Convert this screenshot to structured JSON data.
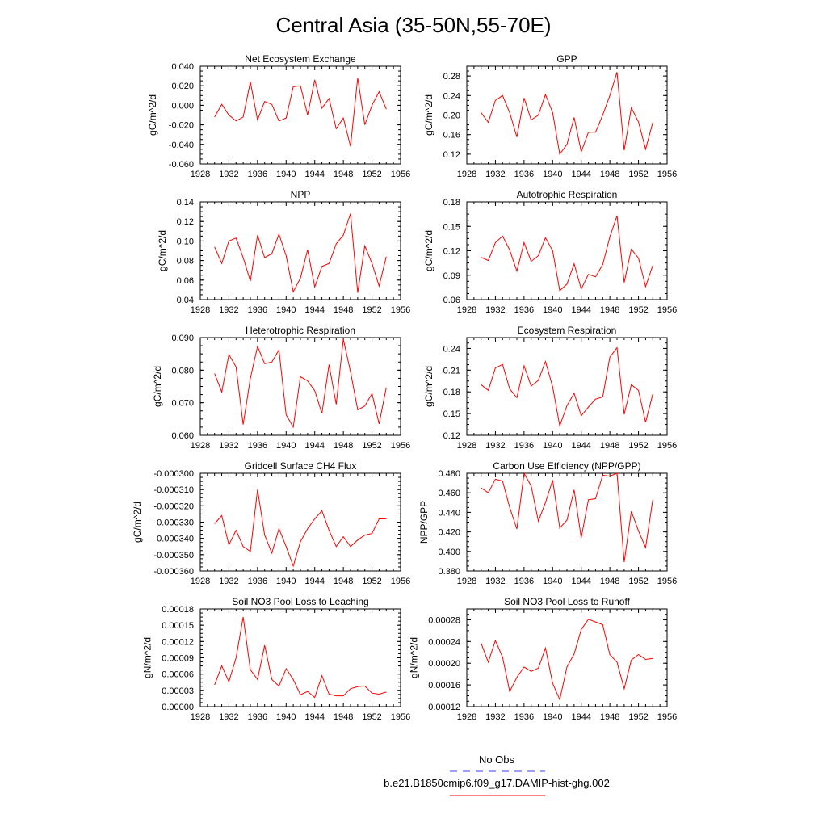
{
  "page_title": "Central Asia (35-50N,55-70E)",
  "legend": {
    "obs_label": "No Obs",
    "obs_color": "#3b3bff",
    "model_label": "b.e21.B1850cmip6.f09_g17.DAMIP-hist-ghg.002",
    "model_color": "#ff0000"
  },
  "chart_data": [
    {
      "type": "line",
      "title": "Net Ecosystem Exchange",
      "ylabel": "gC/m^2/d",
      "xlim": [
        1928,
        1956
      ],
      "xticks": [
        1928,
        1932,
        1936,
        1940,
        1944,
        1948,
        1952,
        1956
      ],
      "ylim": [
        -0.06,
        0.04
      ],
      "yticks": [
        -0.06,
        -0.04,
        -0.02,
        0.0,
        0.02,
        0.04
      ],
      "ytick_labels": [
        "-0.060",
        "-0.040",
        "-0.020",
        "0.000",
        "0.020",
        "0.040"
      ],
      "x": [
        1930,
        1931,
        1932,
        1933,
        1934,
        1935,
        1936,
        1937,
        1938,
        1939,
        1940,
        1941,
        1942,
        1943,
        1944,
        1945,
        1946,
        1947,
        1948,
        1949,
        1950,
        1951,
        1952,
        1953,
        1954
      ],
      "series": [
        {
          "values": [
            -0.012,
            0.001,
            -0.01,
            -0.016,
            -0.012,
            0.024,
            -0.015,
            0.004,
            0.001,
            -0.016,
            -0.013,
            0.019,
            0.02,
            -0.01,
            0.026,
            -0.003,
            0.007,
            -0.024,
            -0.013,
            -0.042,
            0.028,
            -0.02,
            0.0,
            0.014,
            -0.004
          ]
        }
      ]
    },
    {
      "type": "line",
      "title": "GPP",
      "ylabel": "gC/m^2/d",
      "xlim": [
        1928,
        1956
      ],
      "xticks": [
        1928,
        1932,
        1936,
        1940,
        1944,
        1948,
        1952,
        1956
      ],
      "ylim": [
        0.1,
        0.3
      ],
      "yticks": [
        0.12,
        0.16,
        0.2,
        0.24,
        0.28
      ],
      "ytick_labels": [
        "0.12",
        "0.16",
        "0.20",
        "0.24",
        "0.28"
      ],
      "x": [
        1930,
        1931,
        1932,
        1933,
        1934,
        1935,
        1936,
        1937,
        1938,
        1939,
        1940,
        1941,
        1942,
        1943,
        1944,
        1945,
        1946,
        1947,
        1948,
        1949,
        1950,
        1951,
        1952,
        1953,
        1954
      ],
      "series": [
        {
          "values": [
            0.205,
            0.185,
            0.23,
            0.24,
            0.205,
            0.155,
            0.235,
            0.19,
            0.2,
            0.242,
            0.205,
            0.12,
            0.14,
            0.195,
            0.125,
            0.165,
            0.165,
            0.2,
            0.24,
            0.288,
            0.128,
            0.215,
            0.186,
            0.13,
            0.185
          ]
        }
      ]
    },
    {
      "type": "line",
      "title": "NPP",
      "ylabel": "gC/m^2/d",
      "xlim": [
        1928,
        1956
      ],
      "xticks": [
        1928,
        1932,
        1936,
        1940,
        1944,
        1948,
        1952,
        1956
      ],
      "ylim": [
        0.04,
        0.14
      ],
      "yticks": [
        0.04,
        0.06,
        0.08,
        0.1,
        0.12,
        0.14
      ],
      "ytick_labels": [
        "0.04",
        "0.06",
        "0.08",
        "0.10",
        "0.12",
        "0.14"
      ],
      "x": [
        1930,
        1931,
        1932,
        1933,
        1934,
        1935,
        1936,
        1937,
        1938,
        1939,
        1940,
        1941,
        1942,
        1943,
        1944,
        1945,
        1946,
        1947,
        1948,
        1949,
        1950,
        1951,
        1952,
        1953,
        1954
      ],
      "series": [
        {
          "values": [
            0.094,
            0.077,
            0.1,
            0.103,
            0.083,
            0.059,
            0.106,
            0.083,
            0.087,
            0.107,
            0.085,
            0.048,
            0.062,
            0.091,
            0.053,
            0.074,
            0.077,
            0.097,
            0.106,
            0.128,
            0.047,
            0.095,
            0.077,
            0.054,
            0.084
          ]
        }
      ]
    },
    {
      "type": "line",
      "title": "Autotrophic Respiration",
      "ylabel": "gC/m^2/d",
      "xlim": [
        1928,
        1956
      ],
      "xticks": [
        1928,
        1932,
        1936,
        1940,
        1944,
        1948,
        1952,
        1956
      ],
      "ylim": [
        0.06,
        0.18
      ],
      "yticks": [
        0.06,
        0.09,
        0.12,
        0.15,
        0.18
      ],
      "ytick_labels": [
        "0.06",
        "0.09",
        "0.12",
        "0.15",
        "0.18"
      ],
      "x": [
        1930,
        1931,
        1932,
        1933,
        1934,
        1935,
        1936,
        1937,
        1938,
        1939,
        1940,
        1941,
        1942,
        1943,
        1944,
        1945,
        1946,
        1947,
        1948,
        1949,
        1950,
        1951,
        1952,
        1953,
        1954
      ],
      "series": [
        {
          "values": [
            0.112,
            0.108,
            0.13,
            0.138,
            0.121,
            0.095,
            0.13,
            0.107,
            0.114,
            0.136,
            0.12,
            0.071,
            0.079,
            0.104,
            0.073,
            0.091,
            0.088,
            0.103,
            0.137,
            0.163,
            0.081,
            0.122,
            0.111,
            0.076,
            0.102
          ]
        }
      ]
    },
    {
      "type": "line",
      "title": "Heterotrophic Respiration",
      "ylabel": "gC/m^2/d",
      "xlim": [
        1928,
        1956
      ],
      "xticks": [
        1928,
        1932,
        1936,
        1940,
        1944,
        1948,
        1952,
        1956
      ],
      "ylim": [
        0.06,
        0.09
      ],
      "yticks": [
        0.06,
        0.07,
        0.08,
        0.09
      ],
      "ytick_labels": [
        "0.060",
        "0.070",
        "0.080",
        "0.090"
      ],
      "x": [
        1930,
        1931,
        1932,
        1933,
        1934,
        1935,
        1936,
        1937,
        1938,
        1939,
        1940,
        1941,
        1942,
        1943,
        1944,
        1945,
        1946,
        1947,
        1948,
        1949,
        1950,
        1951,
        1952,
        1953,
        1954
      ],
      "series": [
        {
          "values": [
            0.079,
            0.0733,
            0.0848,
            0.081,
            0.0633,
            0.0775,
            0.0873,
            0.082,
            0.0825,
            0.0862,
            0.0663,
            0.0625,
            0.078,
            0.0767,
            0.0737,
            0.0667,
            0.0817,
            0.0695,
            0.0895,
            0.0795,
            0.0678,
            0.069,
            0.0728,
            0.0635,
            0.0747
          ]
        }
      ]
    },
    {
      "type": "line",
      "title": "Ecosystem Respiration",
      "ylabel": "gC/m^2/d",
      "xlim": [
        1928,
        1956
      ],
      "xticks": [
        1928,
        1932,
        1936,
        1940,
        1944,
        1948,
        1952,
        1956
      ],
      "ylim": [
        0.12,
        0.255
      ],
      "yticks": [
        0.12,
        0.15,
        0.18,
        0.21,
        0.24
      ],
      "ytick_labels": [
        "0.12",
        "0.15",
        "0.18",
        "0.21",
        "0.24"
      ],
      "x": [
        1930,
        1931,
        1932,
        1933,
        1934,
        1935,
        1936,
        1937,
        1938,
        1939,
        1940,
        1941,
        1942,
        1943,
        1944,
        1945,
        1946,
        1947,
        1948,
        1949,
        1950,
        1951,
        1952,
        1953,
        1954
      ],
      "series": [
        {
          "values": [
            0.19,
            0.182,
            0.213,
            0.218,
            0.184,
            0.172,
            0.216,
            0.188,
            0.196,
            0.222,
            0.187,
            0.133,
            0.161,
            0.178,
            0.147,
            0.159,
            0.17,
            0.173,
            0.228,
            0.241,
            0.149,
            0.19,
            0.182,
            0.138,
            0.177
          ]
        }
      ]
    },
    {
      "type": "line",
      "title": "Gridcell Surface CH4 Flux",
      "ylabel": "gC/m^2/d",
      "xlim": [
        1928,
        1956
      ],
      "xticks": [
        1928,
        1932,
        1936,
        1940,
        1944,
        1948,
        1952,
        1956
      ],
      "ylim": [
        -0.00036,
        -0.0003
      ],
      "yticks": [
        -0.00036,
        -0.00035,
        -0.00034,
        -0.00033,
        -0.00032,
        -0.00031,
        -0.0003
      ],
      "ytick_labels": [
        "-0.000360",
        "-0.000350",
        "-0.000340",
        "-0.000330",
        "-0.000320",
        "-0.000310",
        "-0.000300"
      ],
      "x": [
        1930,
        1931,
        1932,
        1933,
        1934,
        1935,
        1936,
        1937,
        1938,
        1939,
        1940,
        1941,
        1942,
        1943,
        1944,
        1945,
        1946,
        1947,
        1948,
        1949,
        1950,
        1951,
        1952,
        1953,
        1954
      ],
      "series": [
        {
          "values": [
            -0.000331,
            -0.000326,
            -0.000344,
            -0.000335,
            -0.000345,
            -0.000348,
            -0.00031,
            -0.000338,
            -0.000349,
            -0.000334,
            -0.000345,
            -0.000357,
            -0.000342,
            -0.000334,
            -0.000328,
            -0.000323,
            -0.000335,
            -0.000345,
            -0.000339,
            -0.000345,
            -0.000341,
            -0.000338,
            -0.000337,
            -0.000328,
            -0.000328
          ]
        }
      ]
    },
    {
      "type": "line",
      "title": "Carbon Use Efficiency (NPP/GPP)",
      "ylabel": "NPP/GPP",
      "xlim": [
        1928,
        1956
      ],
      "xticks": [
        1928,
        1932,
        1936,
        1940,
        1944,
        1948,
        1952,
        1956
      ],
      "ylim": [
        0.38,
        0.48
      ],
      "yticks": [
        0.38,
        0.4,
        0.42,
        0.44,
        0.46,
        0.48
      ],
      "ytick_labels": [
        "0.380",
        "0.400",
        "0.420",
        "0.440",
        "0.460",
        "0.480"
      ],
      "x": [
        1930,
        1931,
        1932,
        1933,
        1934,
        1935,
        1936,
        1937,
        1938,
        1939,
        1940,
        1941,
        1942,
        1943,
        1944,
        1945,
        1946,
        1947,
        1948,
        1949,
        1950,
        1951,
        1952,
        1953,
        1954
      ],
      "series": [
        {
          "values": [
            0.465,
            0.46,
            0.474,
            0.472,
            0.445,
            0.423,
            0.48,
            0.467,
            0.431,
            0.45,
            0.473,
            0.424,
            0.432,
            0.463,
            0.414,
            0.453,
            0.454,
            0.478,
            0.477,
            0.48,
            0.389,
            0.441,
            0.421,
            0.404,
            0.453
          ]
        }
      ]
    },
    {
      "type": "line",
      "title": "Soil NO3 Pool Loss to Leaching",
      "ylabel": "gN/m^2/d",
      "xlim": [
        1928,
        1956
      ],
      "xticks": [
        1928,
        1932,
        1936,
        1940,
        1944,
        1948,
        1952,
        1956
      ],
      "ylim": [
        0.0,
        0.00018
      ],
      "yticks": [
        0.0,
        3e-05,
        6e-05,
        9e-05,
        0.00012,
        0.00015,
        0.00018
      ],
      "ytick_labels": [
        "0.00000",
        "0.00003",
        "0.00006",
        "0.00009",
        "0.00012",
        "0.00015",
        "0.00018"
      ],
      "x": [
        1930,
        1931,
        1932,
        1933,
        1934,
        1935,
        1936,
        1937,
        1938,
        1939,
        1940,
        1941,
        1942,
        1943,
        1944,
        1945,
        1946,
        1947,
        1948,
        1949,
        1950,
        1951,
        1952,
        1953,
        1954
      ],
      "series": [
        {
          "values": [
            4e-05,
            7.5e-05,
            4.6e-05,
            9e-05,
            0.000165,
            6.8e-05,
            5e-05,
            0.000113,
            5e-05,
            3.8e-05,
            7e-05,
            5e-05,
            2.2e-05,
            2.8e-05,
            1.7e-05,
            5.7e-05,
            2.3e-05,
            2e-05,
            2e-05,
            3.3e-05,
            3.7e-05,
            3.8e-05,
            2.5e-05,
            2.3e-05,
            2.7e-05
          ]
        }
      ]
    },
    {
      "type": "line",
      "title": "Soil NO3 Pool Loss to Runoff",
      "ylabel": "gN/m^2/d",
      "xlim": [
        1928,
        1956
      ],
      "xticks": [
        1928,
        1932,
        1936,
        1940,
        1944,
        1948,
        1952,
        1956
      ],
      "ylim": [
        0.00012,
        0.0003
      ],
      "yticks": [
        0.00012,
        0.00016,
        0.0002,
        0.00024,
        0.00028
      ],
      "ytick_labels": [
        "0.00012",
        "0.00016",
        "0.00020",
        "0.00024",
        "0.00028"
      ],
      "x": [
        1930,
        1931,
        1932,
        1933,
        1934,
        1935,
        1936,
        1937,
        1938,
        1939,
        1940,
        1941,
        1942,
        1943,
        1944,
        1945,
        1946,
        1947,
        1948,
        1949,
        1950,
        1951,
        1952,
        1953,
        1954
      ],
      "series": [
        {
          "values": [
            0.000237,
            0.000202,
            0.000242,
            0.000211,
            0.000148,
            0.000174,
            0.000193,
            0.000185,
            0.000191,
            0.000228,
            0.000163,
            0.000133,
            0.000193,
            0.000217,
            0.000262,
            0.000281,
            0.000276,
            0.000271,
            0.000216,
            0.000202,
            0.000153,
            0.000206,
            0.000216,
            0.000207,
            0.000209
          ]
        }
      ]
    }
  ]
}
